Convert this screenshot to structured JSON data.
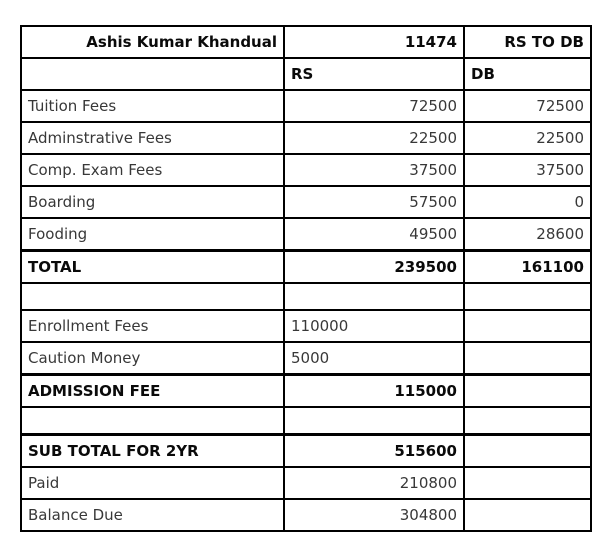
{
  "page": {
    "background": "#ffffff"
  },
  "colors": {
    "border": "#000000",
    "text": "#383838",
    "bold_text": "#0a0a0a"
  },
  "table": {
    "rows": [
      {
        "label": "Ashis Kumar Khandual",
        "rs": "11474",
        "db": "RS TO DB"
      },
      {
        "label": "",
        "rs": "RS",
        "db": "DB"
      },
      {
        "label": "Tuition Fees",
        "rs": "72500",
        "db": "72500"
      },
      {
        "label": "Adminstrative Fees",
        "rs": "22500",
        "db": "22500"
      },
      {
        "label": "Comp. Exam Fees",
        "rs": "37500",
        "db": "37500"
      },
      {
        "label": "Boarding",
        "rs": "57500",
        "db": "0"
      },
      {
        "label": "Fooding",
        "rs": "49500",
        "db": "28600"
      },
      {
        "label": "TOTAL",
        "rs": "239500",
        "db": "161100"
      },
      {
        "label": "",
        "rs": "",
        "db": ""
      },
      {
        "label": "Enrollment Fees",
        "rs": "110000",
        "db": ""
      },
      {
        "label": "Caution Money",
        "rs": "5000",
        "db": ""
      },
      {
        "label": "ADMISSION FEE",
        "rs": "115000",
        "db": ""
      },
      {
        "label": "",
        "rs": "",
        "db": ""
      },
      {
        "label": "SUB TOTAL FOR 2YR",
        "rs": "515600",
        "db": ""
      },
      {
        "label": "Paid",
        "rs": "210800",
        "db": ""
      },
      {
        "label": "Balance Due",
        "rs": "304800",
        "db": ""
      }
    ]
  }
}
